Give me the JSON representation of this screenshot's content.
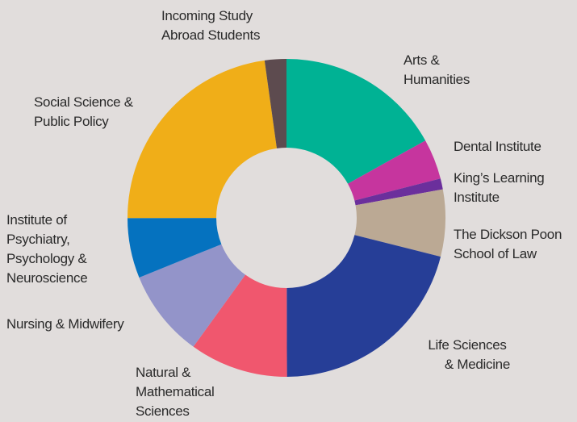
{
  "chart_data": {
    "type": "donut",
    "categories": [
      "Arts & Humanities",
      "Dental Institute",
      "King’s Learning Institute",
      "The Dickson Poon School of Law",
      "Life Sciences & Medicine",
      "Natural & Mathematical Sciences",
      "Nursing & Midwifery",
      "Institute of Psychiatry, Psychology & Neuroscience",
      "Social Science & Public Policy",
      "Incoming Study Abroad Students"
    ],
    "values": [
      16.9,
      4.1,
      1.1,
      6.8,
      21,
      10,
      8.9,
      6.1,
      22.8,
      2.2
    ],
    "colors": [
      "#00b294",
      "#c6359e",
      "#6b2f9c",
      "#bba994",
      "#263e97",
      "#f0576e",
      "#9394c9",
      "#0572bf",
      "#f0ae18",
      "#5d4b4f"
    ]
  }
}
